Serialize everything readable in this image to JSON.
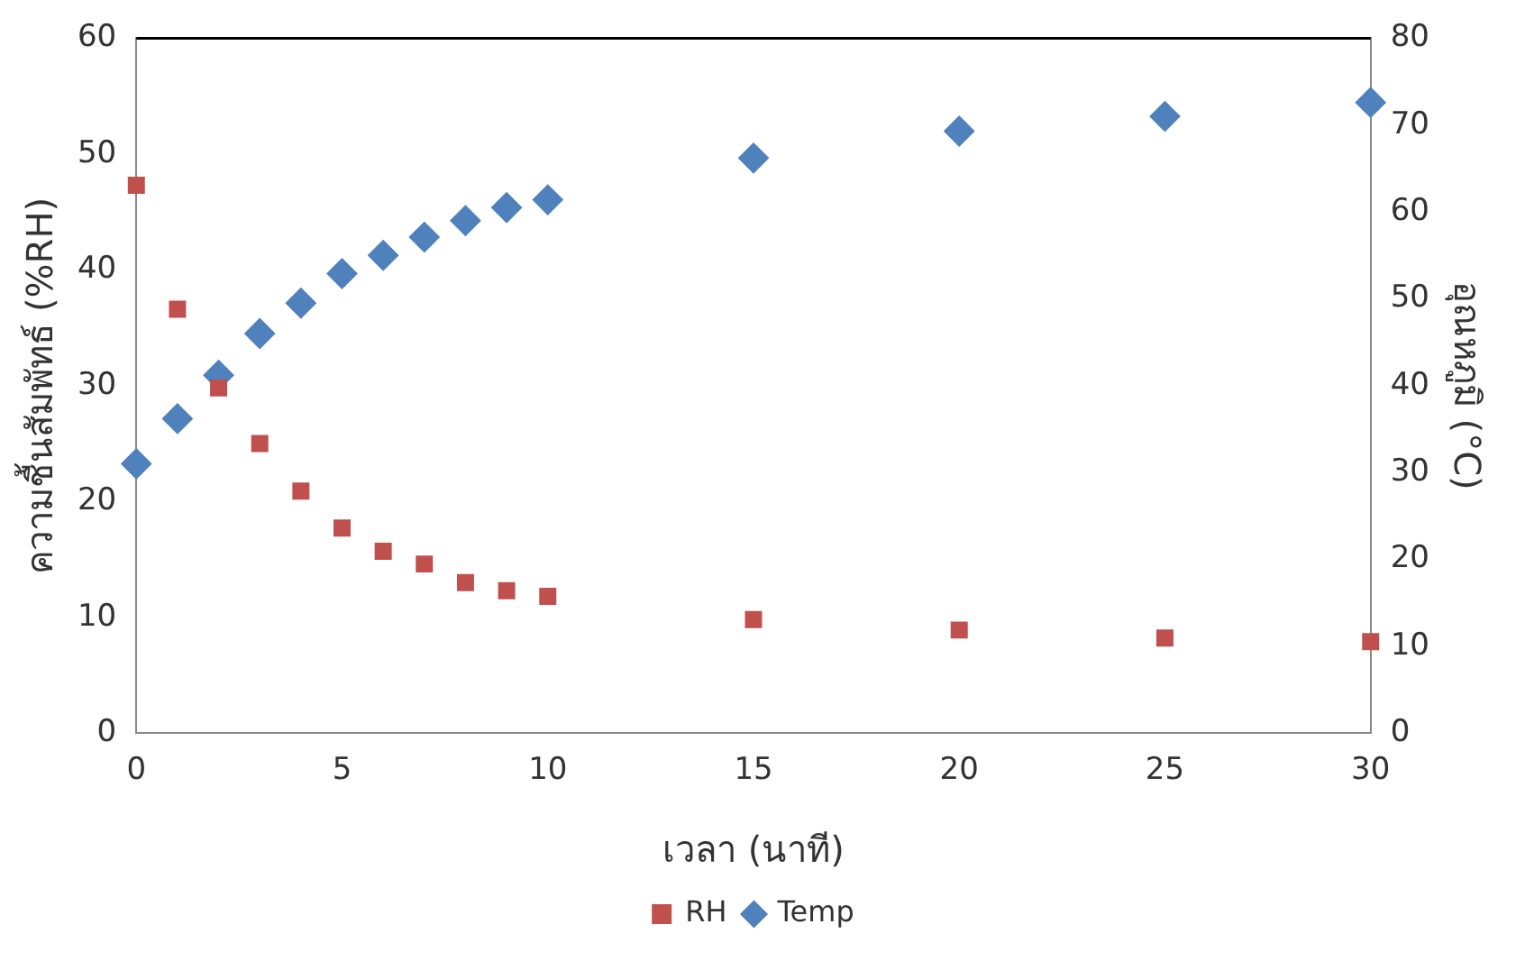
{
  "chart_data": {
    "type": "scatter",
    "xlabel": "เวลา (นาที)",
    "ylabel": "ความชื้นสัมพัทธ์ (%RH)",
    "y2label": "อุณหภูมิ (°C)",
    "x": [
      0,
      1,
      2,
      3,
      4,
      5,
      6,
      7,
      8,
      9,
      10,
      15,
      20,
      25,
      30
    ],
    "series": [
      {
        "name": "RH",
        "color": "#c0504d",
        "marker": "square",
        "values": [
          47.3,
          36.6,
          29.8,
          25,
          20.9,
          17.7,
          15.7,
          14.6,
          13,
          12.3,
          11.8,
          9.8,
          8.9,
          8.2,
          7.9
        ]
      },
      {
        "name": "Temp",
        "color": "#4f81bd",
        "marker": "diamond",
        "axis": "y2",
        "values": [
          31,
          36.2,
          41.2,
          46,
          49.5,
          52.9,
          55,
          57.1,
          59,
          60.5,
          61.4,
          66.2,
          69.3,
          71,
          72.6
        ]
      }
    ],
    "xlim": [
      0,
      30
    ],
    "xticks": [
      0,
      5,
      10,
      15,
      20,
      25,
      30
    ],
    "ylim": [
      0,
      60
    ],
    "yticks": [
      0,
      10,
      20,
      30,
      40,
      50,
      60
    ],
    "y2lim": [
      0,
      80
    ],
    "y2ticks": [
      0,
      10,
      20,
      30,
      40,
      50,
      60,
      70,
      80
    ],
    "grid": false,
    "legend": "bottom"
  }
}
